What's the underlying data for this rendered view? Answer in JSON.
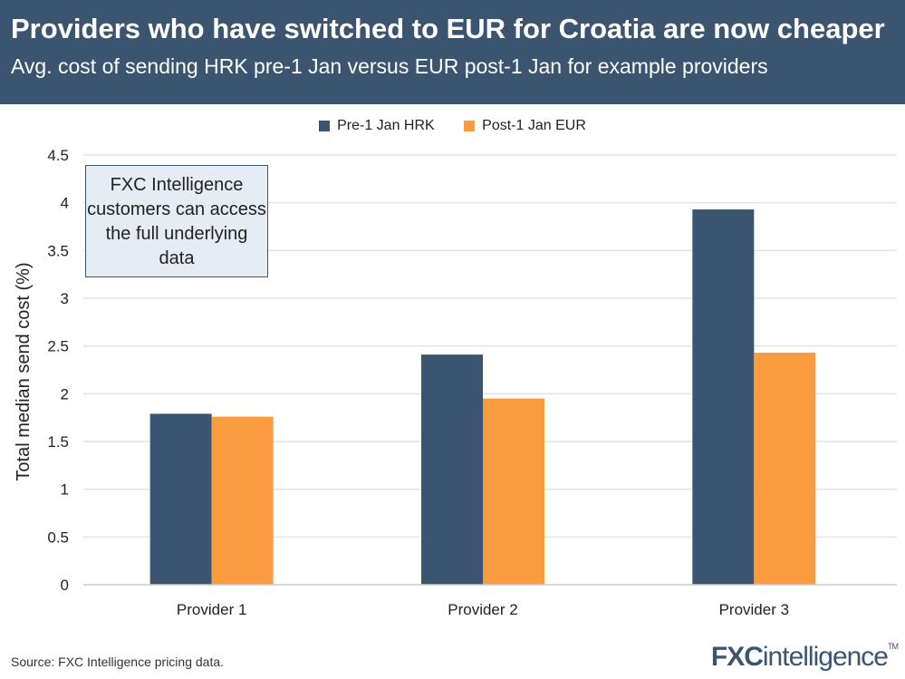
{
  "header": {
    "title": "Providers who have switched to EUR for Croatia are now cheaper",
    "subtitle": "Avg. cost of sending HRK pre-1 Jan versus EUR post-1 Jan for example providers"
  },
  "note": "FXC Intelligence customers can access the full underlying data",
  "source": "Source: FXC Intelligence pricing data.",
  "logo": {
    "text_a": "FXC",
    "text_b": "intelligence",
    "tm": "TM"
  },
  "chart_data": {
    "type": "bar",
    "title": "Providers who have switched to EUR for Croatia are now cheaper",
    "subtitle": "Avg. cost of sending HRK pre-1 Jan versus EUR post-1 Jan for example providers",
    "xlabel": "",
    "ylabel": "Total median send cost (%)",
    "ylim": [
      0,
      4.5
    ],
    "yticks": [
      "0",
      "0.5",
      "1",
      "1.5",
      "2",
      "2.5",
      "3",
      "3.5",
      "4",
      "4.5"
    ],
    "categories": [
      "Provider 1",
      "Provider 2",
      "Provider 3"
    ],
    "series": [
      {
        "name": "Pre-1 Jan HRK",
        "color": "#3b5570",
        "values": [
          1.79,
          2.41,
          3.93
        ]
      },
      {
        "name": "Post-1 Jan EUR",
        "color": "#f99b3e",
        "values": [
          1.76,
          1.95,
          2.43
        ]
      }
    ],
    "grid": true,
    "legend": "top"
  }
}
